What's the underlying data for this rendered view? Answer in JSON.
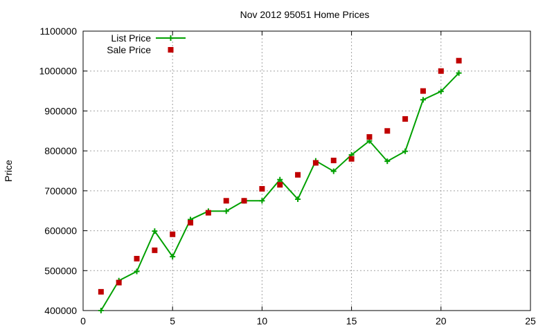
{
  "chart_data": {
    "type": "line",
    "title": "Nov 2012 95051 Home Prices",
    "xlabel": "",
    "ylabel": "Price",
    "xlim": [
      0,
      25
    ],
    "ylim": [
      400000,
      1100000
    ],
    "xticks": [
      0,
      5,
      10,
      15,
      20,
      25
    ],
    "yticks": [
      400000,
      500000,
      600000,
      700000,
      800000,
      900000,
      1000000,
      1100000
    ],
    "grid": true,
    "legend_position": "top-left",
    "series": [
      {
        "name": "List Price",
        "style": "line-with-plus-markers",
        "color": "#00a000",
        "x": [
          1,
          2,
          3,
          4,
          5,
          6,
          7,
          8,
          9,
          10,
          11,
          12,
          13,
          14,
          15,
          16,
          17,
          18,
          19,
          20,
          21
        ],
        "y": [
          400000,
          475000,
          498000,
          599000,
          535000,
          628000,
          649000,
          649000,
          675000,
          675000,
          728000,
          679000,
          775000,
          749000,
          790000,
          825000,
          774000,
          799000,
          928000,
          949000,
          995000
        ]
      },
      {
        "name": "Sale Price",
        "style": "square-points",
        "color": "#c00000",
        "x": [
          1,
          2,
          3,
          4,
          5,
          6,
          7,
          8,
          9,
          10,
          11,
          12,
          13,
          14,
          15,
          16,
          17,
          18,
          19,
          20,
          21
        ],
        "y": [
          447000,
          470000,
          530000,
          551000,
          591000,
          620000,
          645000,
          675000,
          675000,
          705000,
          715000,
          740000,
          770000,
          776000,
          780000,
          835000,
          850000,
          880000,
          950000,
          1000000,
          1026000
        ]
      }
    ]
  }
}
